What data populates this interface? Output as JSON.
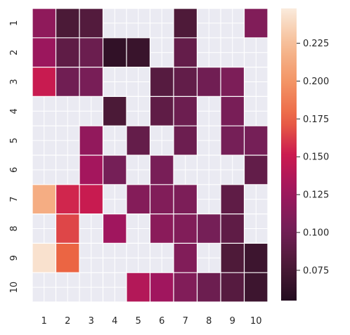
{
  "chart_data": {
    "type": "heatmap",
    "x_labels": [
      "1",
      "2",
      "3",
      "4",
      "5",
      "6",
      "7",
      "8",
      "9",
      "10"
    ],
    "y_labels": [
      "1",
      "2",
      "3",
      "4",
      "5",
      "6",
      "7",
      "8",
      "9",
      "10"
    ],
    "values": [
      [
        0.118,
        0.078,
        0.083,
        null,
        null,
        null,
        0.08,
        null,
        null,
        0.11
      ],
      [
        0.125,
        0.09,
        0.097,
        0.063,
        0.068,
        null,
        0.093,
        null,
        null,
        null
      ],
      [
        0.15,
        0.1,
        0.105,
        null,
        null,
        0.085,
        0.092,
        0.1,
        0.107,
        null
      ],
      [
        null,
        null,
        null,
        0.078,
        null,
        0.09,
        0.098,
        null,
        0.105,
        null
      ],
      [
        null,
        null,
        0.12,
        null,
        0.093,
        null,
        0.098,
        null,
        0.103,
        0.103
      ],
      [
        null,
        null,
        0.13,
        0.103,
        null,
        0.105,
        null,
        null,
        null,
        0.092
      ],
      [
        0.215,
        0.155,
        0.15,
        null,
        0.112,
        0.11,
        0.107,
        null,
        0.09,
        null
      ],
      [
        null,
        0.165,
        null,
        0.128,
        null,
        0.115,
        0.11,
        0.103,
        0.09,
        null
      ],
      [
        0.243,
        0.175,
        null,
        null,
        null,
        null,
        0.11,
        null,
        0.08,
        0.07
      ],
      [
        null,
        null,
        null,
        null,
        0.138,
        0.128,
        0.11,
        0.098,
        0.085,
        0.07
      ]
    ],
    "colorbar": {
      "min": 0.055,
      "max": 0.248,
      "ticks": [
        0.075,
        0.1,
        0.125,
        0.15,
        0.175,
        0.2,
        0.225
      ],
      "tick_labels": [
        "0.075",
        "0.100",
        "0.125",
        "0.150",
        "0.175",
        "0.200",
        "0.225"
      ],
      "colormap": "rocket_r"
    },
    "missing_color": "#eaeaf2",
    "grid_color": "#ffffff"
  }
}
